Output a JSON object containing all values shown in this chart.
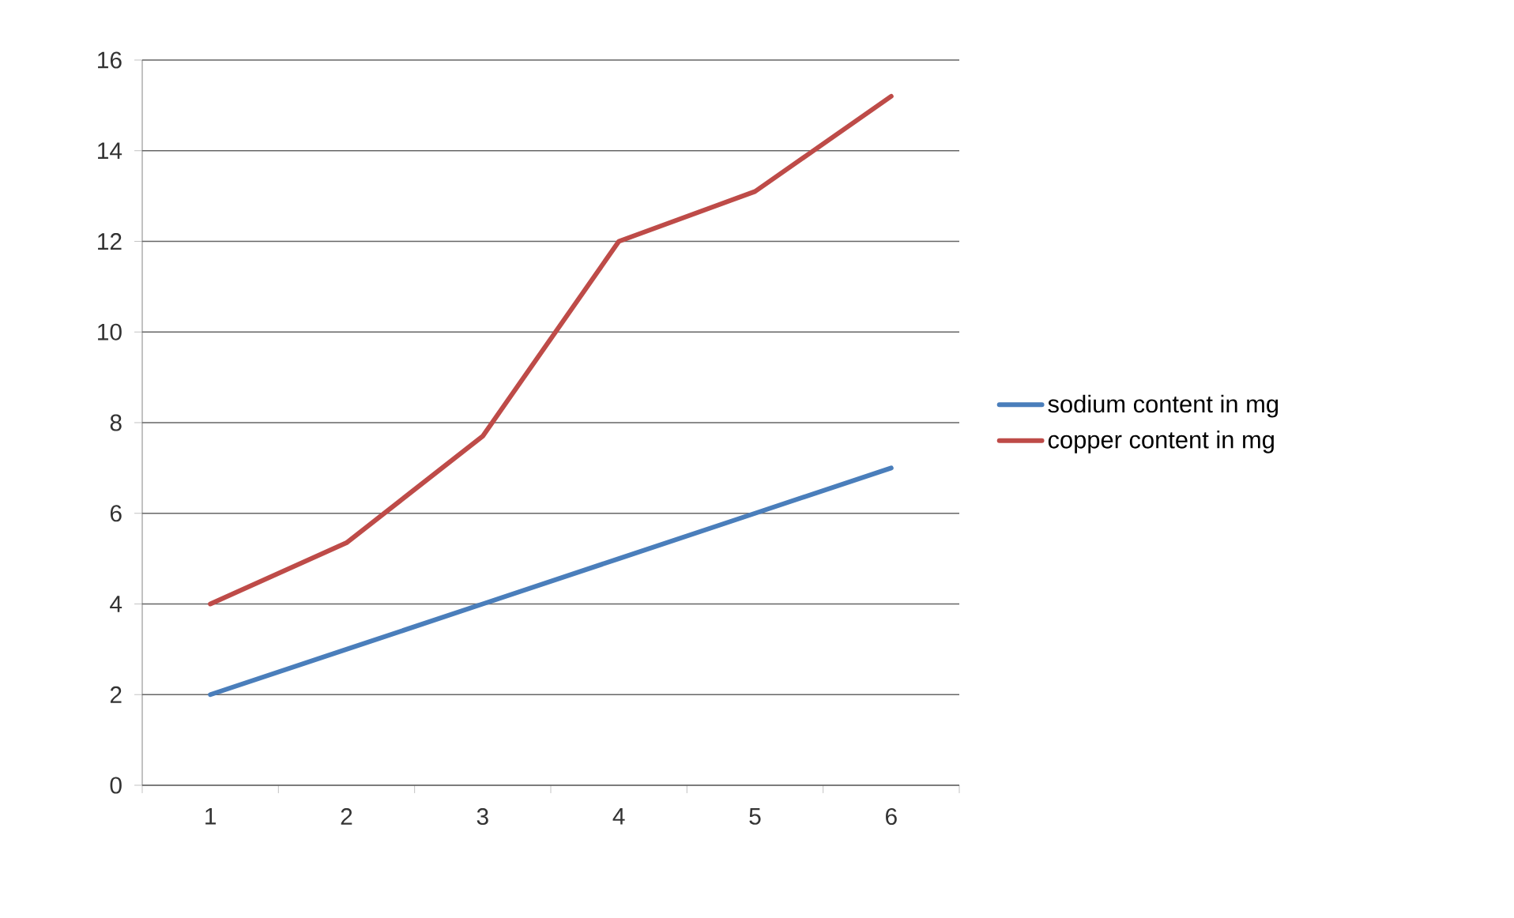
{
  "chart_data": {
    "type": "line",
    "categories": [
      "1",
      "2",
      "3",
      "4",
      "5",
      "6"
    ],
    "series": [
      {
        "name": "sodium content in mg",
        "color": "#4a7ebb",
        "values": [
          2,
          3,
          4,
          5,
          6,
          7
        ]
      },
      {
        "name": "copper content in mg",
        "color": "#be4b48",
        "values": [
          4,
          5.35,
          7.7,
          12,
          13.1,
          15.2
        ]
      }
    ],
    "ylim": [
      0,
      16
    ],
    "yticks": [
      0,
      2,
      4,
      6,
      8,
      10,
      12,
      14,
      16
    ],
    "grid": "y",
    "legend": "right",
    "marker": "none",
    "line_style": "solid"
  }
}
